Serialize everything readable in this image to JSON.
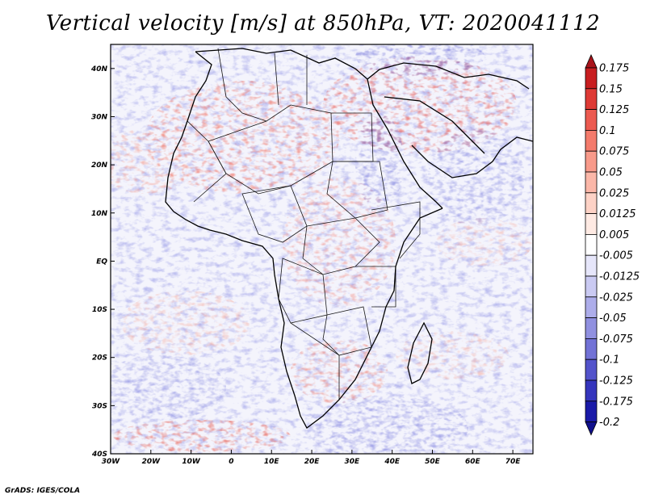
{
  "title": "Vertical velocity [m/s] at 850hPa, VT: 2020041112",
  "footer": "GrADS: IGES/COLA",
  "map": {
    "lat_labels": [
      "40N",
      "30N",
      "20N",
      "10N",
      "EQ",
      "10S",
      "20S",
      "30S",
      "40S"
    ],
    "lat_values": [
      40,
      30,
      20,
      10,
      0,
      -10,
      -20,
      -30,
      -40
    ],
    "lon_labels": [
      "30W",
      "20W",
      "10W",
      "0",
      "10E",
      "20E",
      "30E",
      "40E",
      "50E",
      "60E",
      "70E"
    ],
    "lon_values": [
      -30,
      -20,
      -10,
      0,
      10,
      20,
      30,
      40,
      50,
      60,
      70
    ],
    "lon_range": [
      -30,
      75
    ],
    "lat_range": [
      -40,
      45
    ]
  },
  "colorbar": {
    "labels": [
      "0.175",
      "0.15",
      "0.125",
      "0.1",
      "0.075",
      "0.05",
      "0.025",
      "0.0125",
      "0.005",
      "-0.005",
      "-0.0125",
      "-0.025",
      "-0.05",
      "-0.075",
      "-0.1",
      "-0.125",
      "-0.175",
      "-0.2"
    ],
    "colors": [
      "#a8141b",
      "#c81e20",
      "#de3a35",
      "#ec5a50",
      "#f47b6c",
      "#f89a8a",
      "#fbb7a8",
      "#fdd2c6",
      "#feeae3",
      "#ffffff",
      "#e6e6fa",
      "#cacaf2",
      "#adadea",
      "#9090e0",
      "#7272d6",
      "#5353cb",
      "#3535bd",
      "#1a1aa8",
      "#10108c"
    ]
  }
}
